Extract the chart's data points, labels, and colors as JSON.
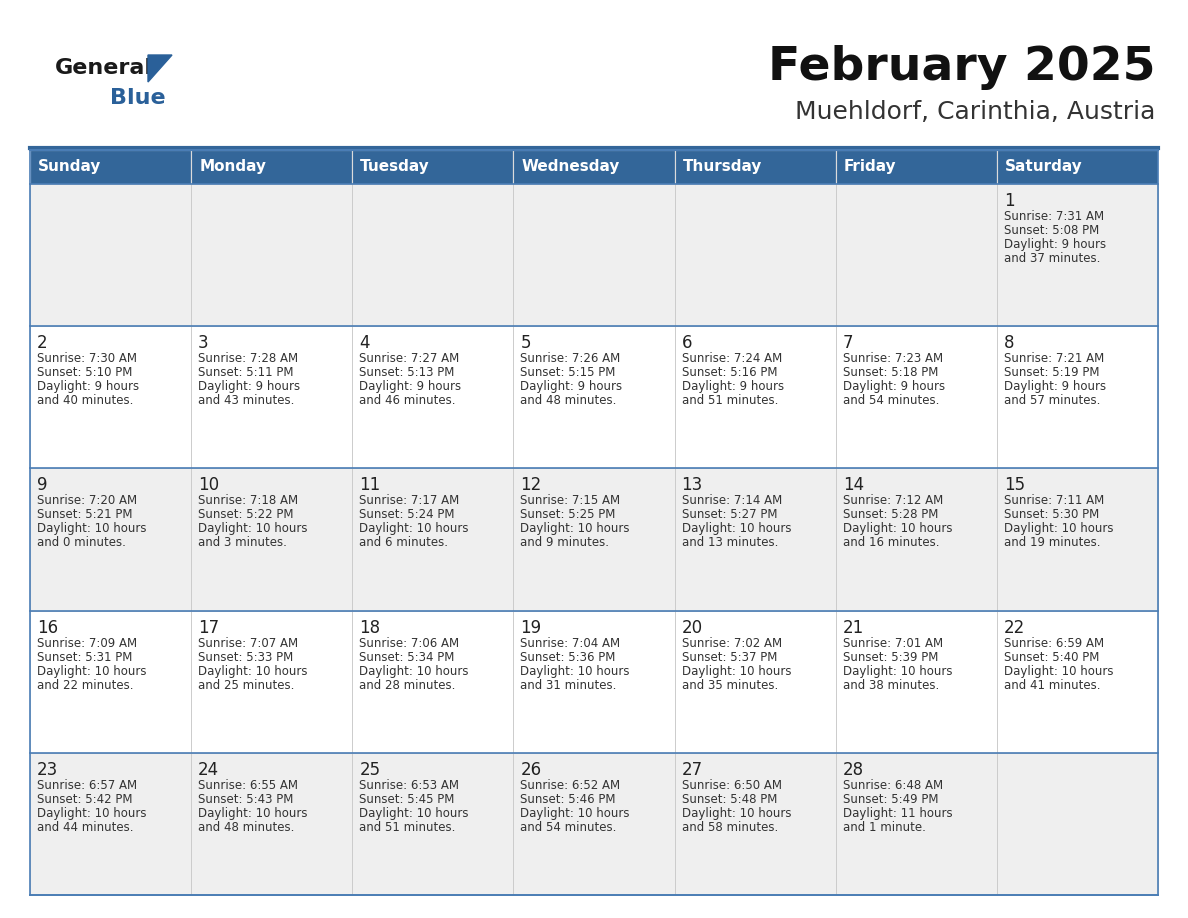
{
  "title": "February 2025",
  "subtitle": "Muehldorf, Carinthia, Austria",
  "days_of_week": [
    "Sunday",
    "Monday",
    "Tuesday",
    "Wednesday",
    "Thursday",
    "Friday",
    "Saturday"
  ],
  "header_bg": "#336699",
  "header_text": "#FFFFFF",
  "cell_bg_row0": "#EFEFEF",
  "cell_bg_row1": "#FFFFFF",
  "cell_border_color": "#4A7DB5",
  "day_number_color": "#222222",
  "text_color": "#333333",
  "title_color": "#111111",
  "subtitle_color": "#333333",
  "logo_general_color": "#1a1a1a",
  "logo_blue_color": "#2a6099",
  "logo_triangle_color": "#2a6099",
  "sep_line_color": "#336699",
  "calendar": [
    [
      null,
      null,
      null,
      null,
      null,
      null,
      {
        "day": 1,
        "sunrise": "7:31 AM",
        "sunset": "5:08 PM",
        "daylight": "9 hours\nand 37 minutes."
      }
    ],
    [
      {
        "day": 2,
        "sunrise": "7:30 AM",
        "sunset": "5:10 PM",
        "daylight": "9 hours\nand 40 minutes."
      },
      {
        "day": 3,
        "sunrise": "7:28 AM",
        "sunset": "5:11 PM",
        "daylight": "9 hours\nand 43 minutes."
      },
      {
        "day": 4,
        "sunrise": "7:27 AM",
        "sunset": "5:13 PM",
        "daylight": "9 hours\nand 46 minutes."
      },
      {
        "day": 5,
        "sunrise": "7:26 AM",
        "sunset": "5:15 PM",
        "daylight": "9 hours\nand 48 minutes."
      },
      {
        "day": 6,
        "sunrise": "7:24 AM",
        "sunset": "5:16 PM",
        "daylight": "9 hours\nand 51 minutes."
      },
      {
        "day": 7,
        "sunrise": "7:23 AM",
        "sunset": "5:18 PM",
        "daylight": "9 hours\nand 54 minutes."
      },
      {
        "day": 8,
        "sunrise": "7:21 AM",
        "sunset": "5:19 PM",
        "daylight": "9 hours\nand 57 minutes."
      }
    ],
    [
      {
        "day": 9,
        "sunrise": "7:20 AM",
        "sunset": "5:21 PM",
        "daylight": "10 hours\nand 0 minutes."
      },
      {
        "day": 10,
        "sunrise": "7:18 AM",
        "sunset": "5:22 PM",
        "daylight": "10 hours\nand 3 minutes."
      },
      {
        "day": 11,
        "sunrise": "7:17 AM",
        "sunset": "5:24 PM",
        "daylight": "10 hours\nand 6 minutes."
      },
      {
        "day": 12,
        "sunrise": "7:15 AM",
        "sunset": "5:25 PM",
        "daylight": "10 hours\nand 9 minutes."
      },
      {
        "day": 13,
        "sunrise": "7:14 AM",
        "sunset": "5:27 PM",
        "daylight": "10 hours\nand 13 minutes."
      },
      {
        "day": 14,
        "sunrise": "7:12 AM",
        "sunset": "5:28 PM",
        "daylight": "10 hours\nand 16 minutes."
      },
      {
        "day": 15,
        "sunrise": "7:11 AM",
        "sunset": "5:30 PM",
        "daylight": "10 hours\nand 19 minutes."
      }
    ],
    [
      {
        "day": 16,
        "sunrise": "7:09 AM",
        "sunset": "5:31 PM",
        "daylight": "10 hours\nand 22 minutes."
      },
      {
        "day": 17,
        "sunrise": "7:07 AM",
        "sunset": "5:33 PM",
        "daylight": "10 hours\nand 25 minutes."
      },
      {
        "day": 18,
        "sunrise": "7:06 AM",
        "sunset": "5:34 PM",
        "daylight": "10 hours\nand 28 minutes."
      },
      {
        "day": 19,
        "sunrise": "7:04 AM",
        "sunset": "5:36 PM",
        "daylight": "10 hours\nand 31 minutes."
      },
      {
        "day": 20,
        "sunrise": "7:02 AM",
        "sunset": "5:37 PM",
        "daylight": "10 hours\nand 35 minutes."
      },
      {
        "day": 21,
        "sunrise": "7:01 AM",
        "sunset": "5:39 PM",
        "daylight": "10 hours\nand 38 minutes."
      },
      {
        "day": 22,
        "sunrise": "6:59 AM",
        "sunset": "5:40 PM",
        "daylight": "10 hours\nand 41 minutes."
      }
    ],
    [
      {
        "day": 23,
        "sunrise": "6:57 AM",
        "sunset": "5:42 PM",
        "daylight": "10 hours\nand 44 minutes."
      },
      {
        "day": 24,
        "sunrise": "6:55 AM",
        "sunset": "5:43 PM",
        "daylight": "10 hours\nand 48 minutes."
      },
      {
        "day": 25,
        "sunrise": "6:53 AM",
        "sunset": "5:45 PM",
        "daylight": "10 hours\nand 51 minutes."
      },
      {
        "day": 26,
        "sunrise": "6:52 AM",
        "sunset": "5:46 PM",
        "daylight": "10 hours\nand 54 minutes."
      },
      {
        "day": 27,
        "sunrise": "6:50 AM",
        "sunset": "5:48 PM",
        "daylight": "10 hours\nand 58 minutes."
      },
      {
        "day": 28,
        "sunrise": "6:48 AM",
        "sunset": "5:49 PM",
        "daylight": "11 hours\nand 1 minute."
      },
      null
    ]
  ]
}
